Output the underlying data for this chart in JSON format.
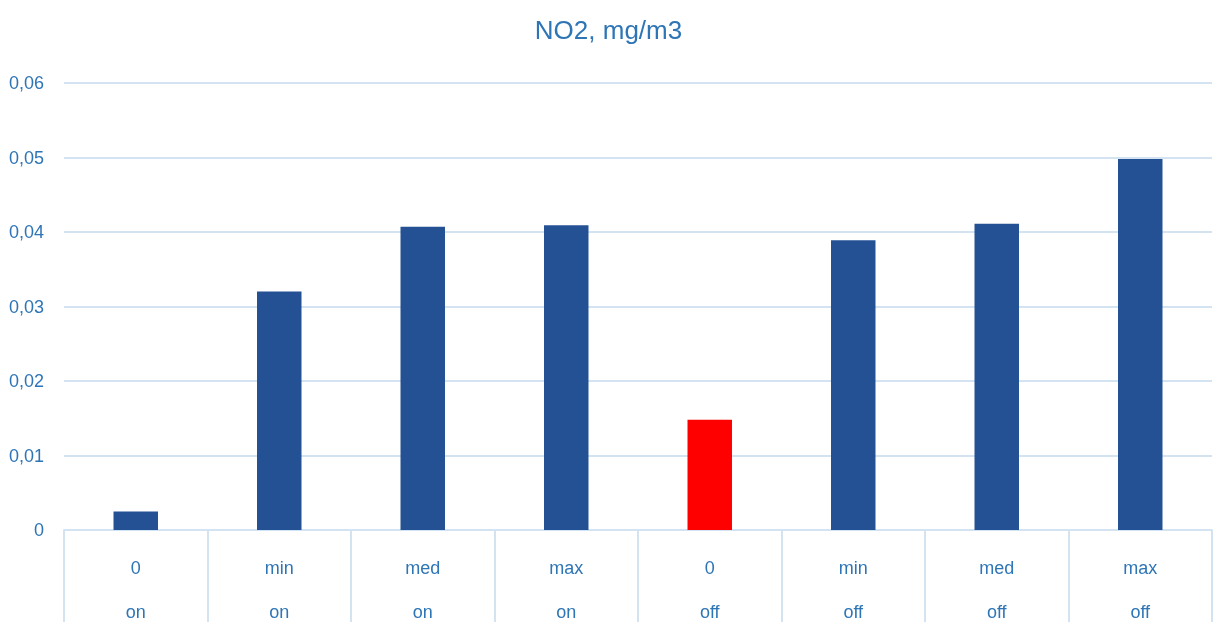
{
  "chart_data": {
    "type": "bar",
    "title": "NO2, mg/m3",
    "categories": [
      "0\non",
      "min\non",
      "med\non",
      "max\non",
      "0\noff",
      "min\noff",
      "med\noff",
      "max\noff"
    ],
    "values": [
      0.0025,
      0.032,
      0.0407,
      0.0409,
      0.0148,
      0.0389,
      0.0411,
      0.0498
    ],
    "colors": [
      "#245193",
      "#245193",
      "#245193",
      "#245193",
      "#ff0000",
      "#245193",
      "#245193",
      "#245193"
    ],
    "ylim": [
      0,
      0.06
    ],
    "yticks": [
      0,
      {
        "value": 0.01,
        "label": "0,01"
      },
      {
        "value": 0.02,
        "label": "0,02"
      },
      {
        "value": 0.03,
        "label": "0,03"
      },
      {
        "value": 0.04,
        "label": "0,04"
      },
      {
        "value": 0.05,
        "label": "0,05"
      },
      {
        "value": 0.06,
        "label": "0,06"
      }
    ],
    "grid": "y"
  }
}
